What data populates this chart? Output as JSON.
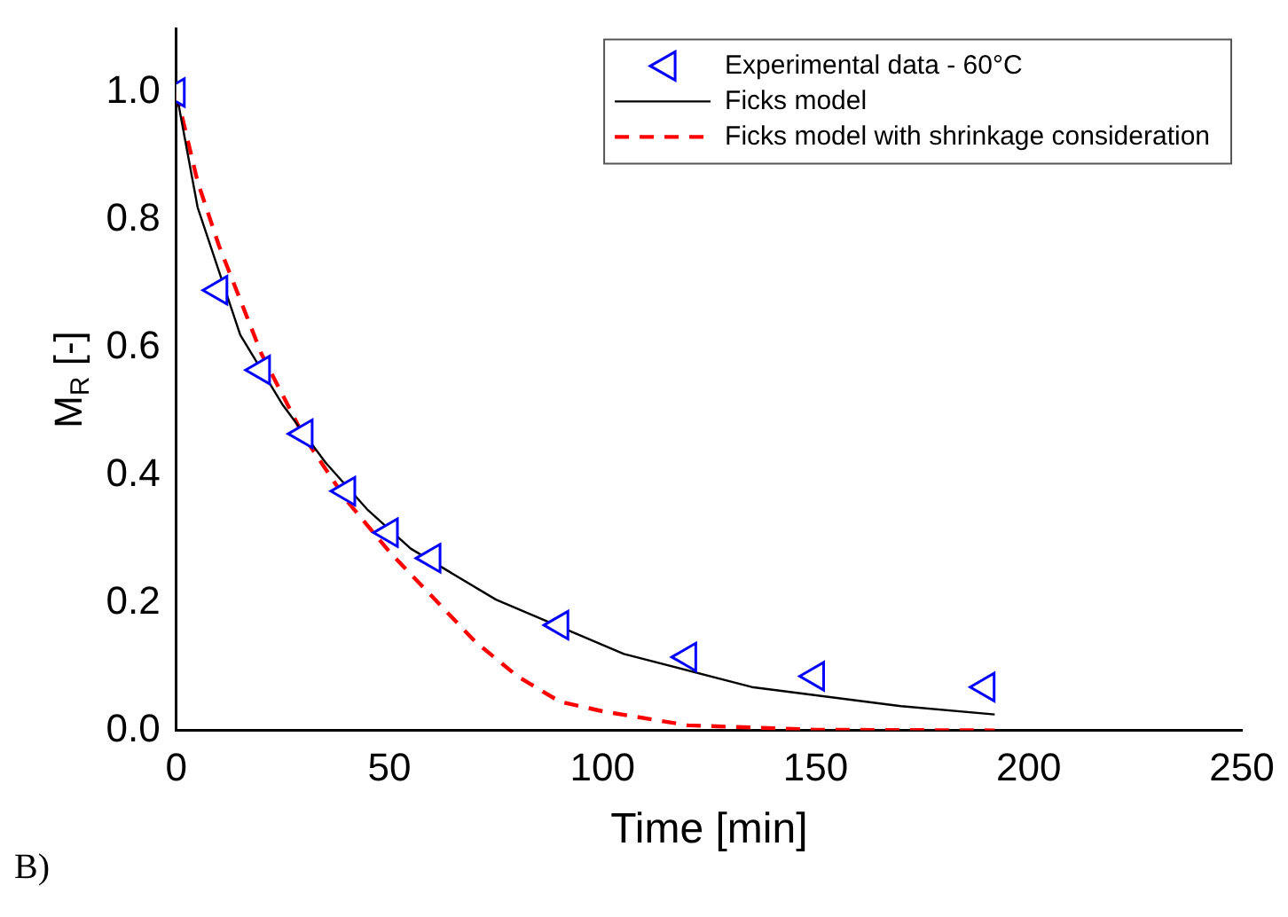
{
  "chart_data": {
    "type": "line",
    "xlabel": "Time [min]",
    "ylabel": "M$_{R}$ [-]",
    "xlim": [
      0,
      250
    ],
    "xticks": [
      0,
      50,
      100,
      150,
      200,
      250
    ],
    "ylim": [
      0,
      1.1
    ],
    "yticks": [
      {
        "value": 0,
        "label": "0.0"
      },
      {
        "value": 0.2,
        "label": "0.2"
      },
      {
        "value": 0.4,
        "label": "0.4"
      },
      {
        "value": 0.6,
        "label": "0.6"
      },
      {
        "value": 0.8,
        "label": "0.8"
      },
      {
        "value": 1,
        "label": "1.0"
      }
    ],
    "grid": false,
    "legend": "top right",
    "annotations": [
      "B)"
    ],
    "series": [
      {
        "name": "Experimental data - 60°C",
        "type": "scatter",
        "marker": "triangle",
        "color": "#0000ff",
        "x": [
          0,
          10,
          20,
          30,
          40,
          50,
          60,
          90,
          120,
          150,
          190
        ],
        "values": [
          1.0,
          0.69,
          0.565,
          0.465,
          0.375,
          0.31,
          0.27,
          0.165,
          0.115,
          0.085,
          0.068
        ]
      },
      {
        "name": "Ficks model",
        "type": "line",
        "line_style": "solid",
        "color": "#000000",
        "x": [
          0,
          5,
          15,
          25,
          35,
          45,
          55,
          75,
          105,
          135,
          170,
          192
        ],
        "values": [
          1.0,
          0.82,
          0.62,
          0.51,
          0.42,
          0.345,
          0.285,
          0.205,
          0.12,
          0.068,
          0.038,
          0.025
        ]
      },
      {
        "name": "Ficks model with shrinkage consideration",
        "type": "line",
        "line_style": "dashed",
        "color": "#ff0000",
        "x": [
          0,
          5,
          10,
          20,
          30,
          40,
          50,
          60,
          70,
          80,
          90,
          100,
          120,
          150,
          192
        ],
        "values": [
          1.0,
          0.86,
          0.76,
          0.59,
          0.46,
          0.36,
          0.28,
          0.21,
          0.14,
          0.085,
          0.045,
          0.03,
          0.008,
          0.001,
          0
        ]
      }
    ]
  }
}
